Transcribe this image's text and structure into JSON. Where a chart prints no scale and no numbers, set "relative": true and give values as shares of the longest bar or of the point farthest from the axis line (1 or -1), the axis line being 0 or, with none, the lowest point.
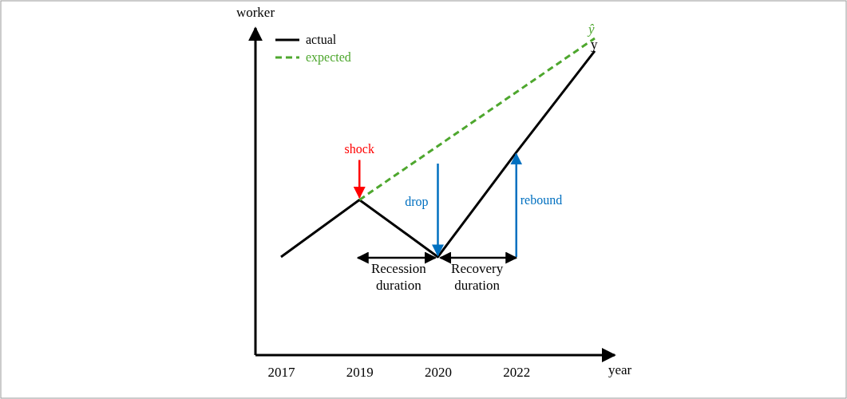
{
  "chart_data": {
    "type": "line",
    "relative": true,
    "xlabel": "year",
    "ylabel": "worker",
    "categories": [
      "2017",
      "2019",
      "2020",
      "2022",
      null
    ],
    "series": [
      {
        "name": "actual",
        "color": "#000000",
        "line_style": "solid",
        "values": [
          0.31,
          0.49,
          0.31,
          0.64,
          0.96
        ]
      },
      {
        "name": "expected",
        "color": "#4ea72e",
        "line_style": "dashed",
        "values": [
          null,
          0.49,
          0.66,
          0.83,
          1
        ]
      }
    ],
    "annotations": [
      {
        "text": "shock",
        "x": "2019",
        "y": 0.49
      },
      "drop",
      "rebound",
      "Recession duration",
      "Recovery duration",
      "ŷ",
      "y"
    ],
    "legend": "top left",
    "grid": false,
    "marker": "none",
    "tick_labels": "x"
  }
}
